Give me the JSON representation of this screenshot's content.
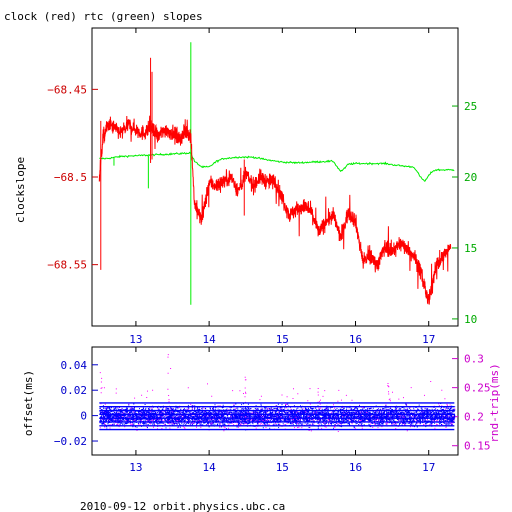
{
  "footer": "2010-09-12 orbit.physics.ubc.ca",
  "colors": {
    "clock": "#ff0000",
    "rtc": "#00ee00",
    "offset": "#0000ff",
    "roundtrip": "#ff00ff",
    "x_axis": "#0000cc",
    "left_axis_top": "#cc0000",
    "right_axis_top": "#00aa00",
    "right_axis_bottom": "#cc00cc"
  },
  "chart_data": [
    {
      "type": "line",
      "title": "clock (red) rtc (green) slopes",
      "ylabel": "clockslope",
      "xlim": [
        12.4,
        17.4
      ],
      "x_ticks": [
        13,
        14,
        15,
        16,
        17
      ],
      "ylim_left": [
        -68.585,
        -68.415
      ],
      "y_ticks_left": [
        -68.45,
        -68.5,
        -68.55
      ],
      "ylim_right": [
        9.5,
        30.5
      ],
      "y_ticks_right": [
        10,
        15,
        20,
        25
      ],
      "series": [
        {
          "name": "clock",
          "axis": "left",
          "x": [
            12.5,
            12.55,
            12.6,
            12.65,
            12.7,
            12.8,
            12.9,
            13.0,
            13.1,
            13.2,
            13.3,
            13.4,
            13.5,
            13.6,
            13.7,
            13.75,
            13.8,
            13.85,
            13.9,
            14.0,
            14.1,
            14.2,
            14.3,
            14.4,
            14.5,
            14.6,
            14.7,
            14.8,
            14.9,
            15.0,
            15.1,
            15.2,
            15.3,
            15.4,
            15.5,
            15.6,
            15.7,
            15.8,
            15.9,
            16.0,
            16.1,
            16.2,
            16.3,
            16.4,
            16.5,
            16.6,
            16.7,
            16.8,
            16.9,
            17.0,
            17.1,
            17.2,
            17.3
          ],
          "y": [
            -68.5,
            -68.478,
            -68.472,
            -68.47,
            -68.472,
            -68.475,
            -68.47,
            -68.473,
            -68.475,
            -68.472,
            -68.477,
            -68.473,
            -68.475,
            -68.478,
            -68.474,
            -68.476,
            -68.515,
            -68.52,
            -68.525,
            -68.503,
            -68.505,
            -68.502,
            -68.5,
            -68.508,
            -68.498,
            -68.505,
            -68.5,
            -68.503,
            -68.502,
            -68.512,
            -68.522,
            -68.518,
            -68.517,
            -68.52,
            -68.532,
            -68.525,
            -68.522,
            -68.535,
            -68.52,
            -68.525,
            -68.548,
            -68.545,
            -68.55,
            -68.54,
            -68.542,
            -68.538,
            -68.54,
            -68.545,
            -68.555,
            -68.572,
            -68.55,
            -68.545,
            -68.54
          ]
        },
        {
          "name": "rtc",
          "axis": "right",
          "x": [
            12.5,
            12.6,
            12.8,
            13.0,
            13.2,
            13.4,
            13.6,
            13.75,
            13.8,
            13.9,
            14.0,
            14.1,
            14.2,
            14.4,
            14.6,
            14.8,
            15.0,
            15.2,
            15.4,
            15.6,
            15.7,
            15.75,
            15.8,
            15.85,
            15.9,
            16.0,
            16.2,
            16.4,
            16.6,
            16.8,
            16.9,
            16.95,
            17.0,
            17.05,
            17.1,
            17.2,
            17.35
          ],
          "y": [
            21.3,
            21.3,
            21.45,
            21.5,
            21.55,
            21.6,
            21.65,
            21.7,
            21.1,
            20.7,
            20.7,
            21.1,
            21.3,
            21.4,
            21.4,
            21.2,
            21.05,
            21.0,
            21.05,
            21.1,
            21.1,
            20.7,
            20.4,
            20.6,
            20.9,
            20.95,
            20.95,
            20.95,
            20.8,
            20.7,
            19.9,
            19.7,
            20.1,
            20.4,
            20.5,
            20.5,
            20.5
          ]
        }
      ]
    },
    {
      "type": "scatter",
      "ylabel_left": "offset(ms)",
      "ylabel_right": "rnd-trip(ms)",
      "xlim": [
        12.4,
        17.4
      ],
      "x_ticks": [
        13,
        14,
        15,
        16,
        17
      ],
      "ylim_left": [
        -0.031,
        0.054
      ],
      "y_ticks_left": [
        0.04,
        0.02,
        0,
        -0.02
      ],
      "y_tick_labels_left": [
        "0.04",
        "0.02",
        "0",
        "−0.02"
      ],
      "ylim_right": [
        0.134,
        0.32
      ],
      "y_ticks_right": [
        0.3,
        0.25,
        0.2,
        0.15
      ],
      "series": [
        {
          "name": "offset",
          "axis": "left",
          "center": 0,
          "spread": 0.007
        },
        {
          "name": "rnd-trip",
          "axis": "right",
          "center": 0.2,
          "spread": 0.018
        }
      ]
    }
  ]
}
